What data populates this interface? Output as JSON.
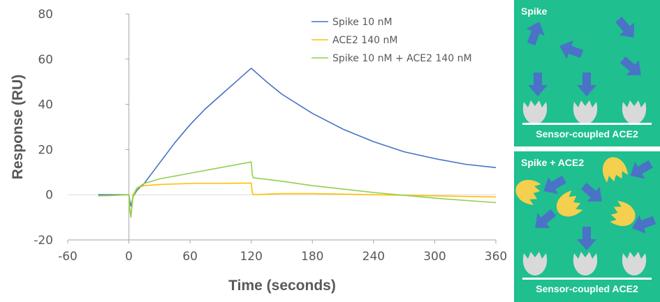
{
  "chart_data": {
    "type": "line",
    "xlabel": "Time (seconds)",
    "ylabel": "Response (RU)",
    "xlim": [
      -60,
      360
    ],
    "ylim": [
      -20,
      80
    ],
    "xticks": [
      -60,
      0,
      60,
      120,
      180,
      240,
      300,
      360
    ],
    "yticks": [
      -20,
      0,
      20,
      40,
      60,
      80
    ],
    "grid": false,
    "legend_position": "top-right",
    "series": [
      {
        "name": "Spike 10 nM",
        "color": "#4472c4",
        "x": [
          -30,
          -15,
          0,
          1,
          2,
          4,
          8,
          15,
          30,
          45,
          60,
          75,
          90,
          105,
          120,
          135,
          150,
          180,
          210,
          240,
          270,
          300,
          330,
          360
        ],
        "y": [
          0,
          0,
          0,
          -3,
          -5,
          -1,
          2,
          5,
          14,
          23,
          31,
          38,
          44,
          50,
          56,
          50,
          44.5,
          36,
          29,
          23.5,
          19,
          16,
          13.5,
          12
        ]
      },
      {
        "name": "ACE2 140 nM",
        "color": "#ffc000",
        "x": [
          -30,
          -15,
          0,
          1,
          2,
          4,
          8,
          15,
          30,
          60,
          90,
          120,
          121,
          122,
          150,
          180,
          240,
          300,
          360
        ],
        "y": [
          -0.5,
          -0.3,
          0,
          -7,
          -9,
          0,
          3,
          4,
          4.5,
          5,
          5,
          5.2,
          1,
          0,
          0.5,
          0.5,
          0,
          -0.5,
          -1
        ]
      },
      {
        "name": "Spike 10 nM + ACE2 140 nM",
        "color": "#8fd14f",
        "x": [
          -30,
          -15,
          0,
          1,
          2,
          4,
          8,
          15,
          30,
          60,
          90,
          120,
          121,
          122,
          150,
          180,
          240,
          300,
          360
        ],
        "y": [
          -0.5,
          -0.3,
          0,
          -7,
          -10,
          -1,
          3,
          5,
          7,
          9.5,
          12,
          14.5,
          9,
          7.5,
          6,
          4,
          1,
          -1.5,
          -3.5
        ]
      }
    ]
  },
  "diagram": {
    "top_panel": {
      "title": "Spike",
      "sensor_label": "Sensor-coupled ACE2"
    },
    "bottom_panel": {
      "title": "Spike + ACE2",
      "sensor_label": "Sensor-coupled ACE2"
    },
    "colors": {
      "panel_background": "#1fbf8f",
      "spike_arrow": "#4a72c7",
      "ace2_receptor": "#d9d9d9",
      "soluble_ace2": "#f5cf4e"
    }
  }
}
